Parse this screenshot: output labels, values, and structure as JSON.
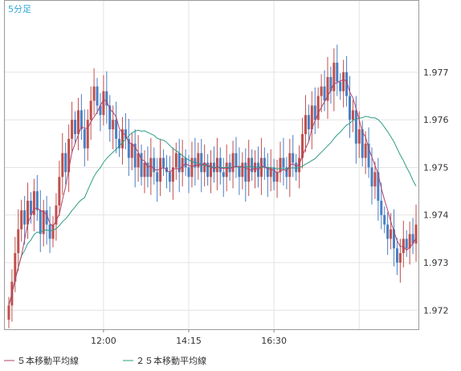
{
  "chart_data": {
    "type": "candlestick",
    "title": "5分足",
    "ylim": [
      1.9716,
      1.9785
    ],
    "y_ticks": [
      "1.977",
      "1.976",
      "1.975",
      "1.974",
      "1.973",
      "1.972"
    ],
    "x_ticks": [
      "12:00",
      "14:15",
      "16:30"
    ],
    "grid": true,
    "legend_placement": "bottom-left",
    "colors": {
      "up": "#c0504d",
      "down": "#4a7fc4",
      "ma5": "#b0426a",
      "ma25": "#2e9c84"
    },
    "series": [
      {
        "name": "５本移動平均線"
      },
      {
        "name": "２５本移動平均線"
      }
    ],
    "close": [
      1.9721,
      1.9726,
      1.9732,
      1.9737,
      1.9741,
      1.9738,
      1.9743,
      1.974,
      1.9745,
      1.9741,
      1.9736,
      1.9741,
      1.9738,
      1.9735,
      1.9738,
      1.9742,
      1.9748,
      1.9753,
      1.9749,
      1.9756,
      1.976,
      1.9757,
      1.9762,
      1.9758,
      1.9754,
      1.976,
      1.9764,
      1.9767,
      1.9763,
      1.9761,
      1.9766,
      1.9763,
      1.9758,
      1.976,
      1.9756,
      1.9754,
      1.9758,
      1.9756,
      1.9752,
      1.9755,
      1.975,
      1.9753,
      1.9748,
      1.9751,
      1.9748,
      1.9752,
      1.9749,
      1.9747,
      1.9752,
      1.975,
      1.9749,
      1.9747,
      1.975,
      1.9753,
      1.9749,
      1.9752,
      1.975,
      1.9748,
      1.9752,
      1.975,
      1.9753,
      1.9749,
      1.9751,
      1.9748,
      1.9751,
      1.9749,
      1.9752,
      1.9749,
      1.9748,
      1.9751,
      1.9749,
      1.9753,
      1.975,
      1.9748,
      1.9751,
      1.9747,
      1.9752,
      1.9749,
      1.9751,
      1.9748,
      1.9752,
      1.975,
      1.9748,
      1.975,
      1.9747,
      1.9749,
      1.9752,
      1.975,
      1.9748,
      1.9753,
      1.9751,
      1.9749,
      1.9752,
      1.9757,
      1.9761,
      1.9758,
      1.9763,
      1.976,
      1.9765,
      1.9767,
      1.9764,
      1.9769,
      1.9766,
      1.9772,
      1.9768,
      1.9766,
      1.977,
      1.9765,
      1.976,
      1.9762,
      1.9755,
      1.9758,
      1.9752,
      1.9755,
      1.975,
      1.9746,
      1.9749,
      1.9743,
      1.974,
      1.9738,
      1.9735,
      1.9737,
      1.9733,
      1.973,
      1.9732,
      1.9735,
      1.9733,
      1.9736,
      1.9734,
      1.9738
    ]
  },
  "legend": {
    "ma5": "５本移動平均線",
    "ma25": "２５本移動平均線"
  }
}
